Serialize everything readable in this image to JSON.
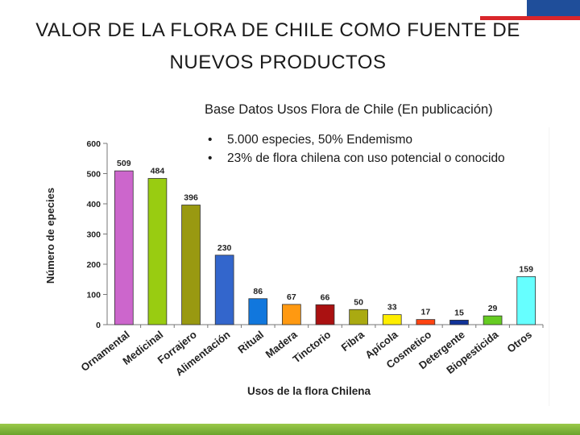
{
  "slide": {
    "title_line1": "VALOR DE LA FLORA DE CHILE COMO FUENTE DE",
    "title_line2": "NUEVOS PRODUCTOS",
    "subtitle": "Base Datos Usos Flora de Chile (En publicación)",
    "bullets": [
      "5.000 especies, 50% Endemismo",
      "23% de flora chilena con uso potencial o conocido"
    ]
  },
  "colors": {
    "flag_blue": "#1f4e9a",
    "flag_red": "#d9262b",
    "bottom_bar": "#7cb342"
  },
  "chart_data": {
    "type": "bar",
    "title": "",
    "xlabel": "Usos de la flora Chilena",
    "ylabel": "Número de epecies",
    "ylim": [
      0,
      600
    ],
    "yticks": [
      0,
      100,
      200,
      300,
      400,
      500,
      600
    ],
    "grid": false,
    "categories": [
      "Ornamental",
      "Medicinal",
      "Forrajero",
      "Alimentación",
      "Ritual",
      "Madera",
      "Tinctorio",
      "Fibra",
      "Apícola",
      "Cosmetico",
      "Detergente",
      "Biopesticida",
      "Otros"
    ],
    "values": [
      509,
      484,
      396,
      230,
      86,
      67,
      66,
      50,
      33,
      17,
      15,
      29,
      159
    ],
    "bar_colors": [
      "#cc66cc",
      "#99cc11",
      "#999911",
      "#3366cc",
      "#1177dd",
      "#ff9911",
      "#aa1111",
      "#aaaa11",
      "#ffee00",
      "#ff4411",
      "#113399",
      "#66cc22",
      "#66ffff"
    ]
  }
}
